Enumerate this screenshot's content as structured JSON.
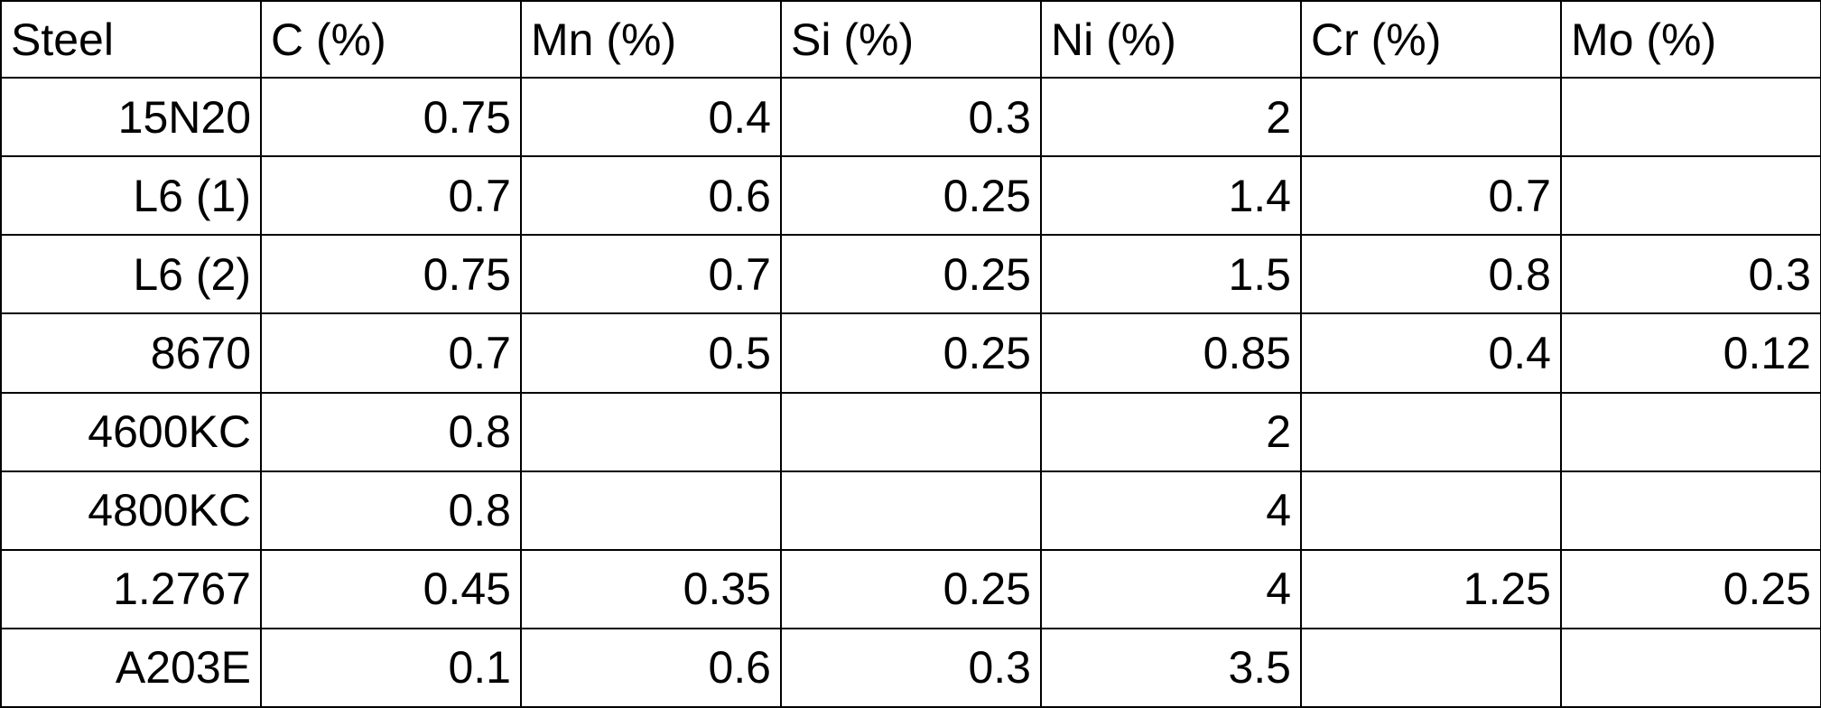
{
  "table": {
    "headers": [
      "Steel",
      "C (%)",
      "Mn (%)",
      "Si (%)",
      "Ni (%)",
      "Cr (%)",
      "Mo (%)"
    ],
    "rows": [
      [
        "15N20",
        "0.75",
        "0.4",
        "0.3",
        "2",
        "",
        ""
      ],
      [
        "L6 (1)",
        "0.7",
        "0.6",
        "0.25",
        "1.4",
        "0.7",
        ""
      ],
      [
        "L6 (2)",
        "0.75",
        "0.7",
        "0.25",
        "1.5",
        "0.8",
        "0.3"
      ],
      [
        "8670",
        "0.7",
        "0.5",
        "0.25",
        "0.85",
        "0.4",
        "0.12"
      ],
      [
        "4600KC",
        "0.8",
        "",
        "",
        "2",
        "",
        ""
      ],
      [
        "4800KC",
        "0.8",
        "",
        "",
        "4",
        "",
        ""
      ],
      [
        "1.2767",
        "0.45",
        "0.35",
        "0.25",
        "4",
        "1.25",
        "0.25"
      ],
      [
        "A203E",
        "0.1",
        "0.6",
        "0.3",
        "3.5",
        "",
        ""
      ]
    ]
  }
}
